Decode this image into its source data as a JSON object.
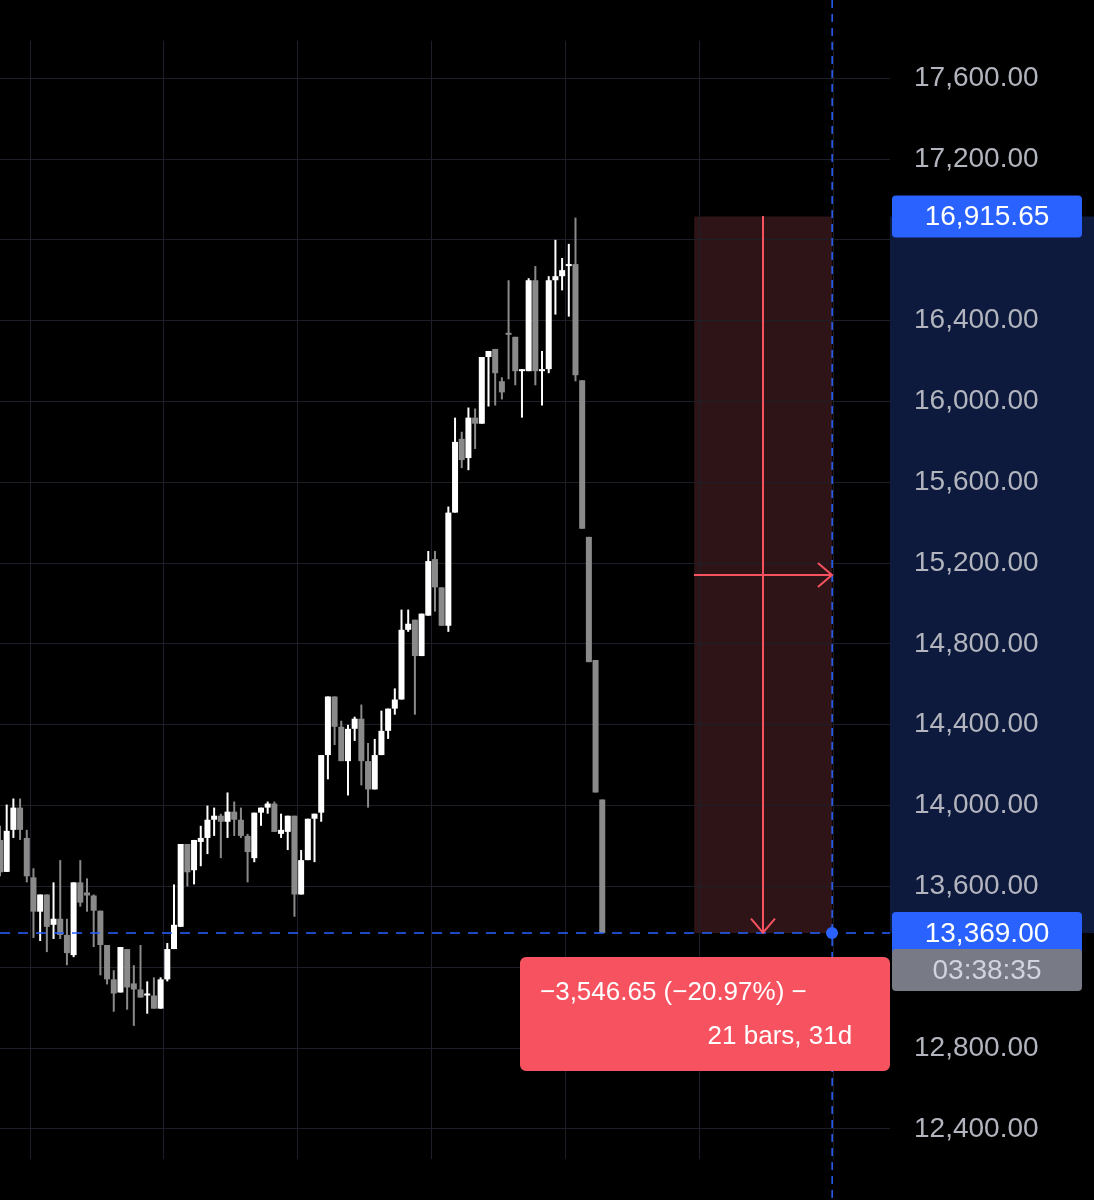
{
  "chart_data": {
    "type": "candlestick",
    "categories": [
      null,
      null,
      null,
      null,
      null,
      null,
      null,
      null,
      null,
      null,
      null,
      null,
      null,
      null,
      null,
      null,
      null,
      null,
      null,
      null,
      null,
      null,
      null,
      null,
      null,
      null,
      null,
      null,
      null,
      null,
      null,
      null,
      null,
      null,
      null,
      null,
      null,
      null,
      null,
      null,
      null,
      null,
      null,
      null,
      null,
      null,
      null,
      null,
      null,
      null,
      null,
      null,
      null,
      null,
      null,
      null,
      null,
      null,
      null,
      null,
      null,
      null,
      null,
      null,
      null,
      null,
      null,
      null,
      null,
      null,
      null,
      null,
      null,
      null,
      null,
      null,
      null,
      null,
      null,
      null,
      null,
      null,
      null,
      null,
      null,
      null,
      null,
      null,
      null,
      null,
      null,
      null,
      null,
      null,
      null,
      null,
      null,
      null,
      null,
      null,
      null,
      null,
      null,
      null,
      null,
      null,
      null,
      null,
      null,
      null,
      null,
      null,
      null,
      null,
      null,
      null,
      null,
      null,
      null,
      null,
      null,
      null,
      null,
      null,
      null,
      null,
      null,
      null,
      null,
      null,
      null,
      null,
      null,
      null
    ],
    "ohlc": [
      [
        13830,
        13900,
        13650,
        13670
      ],
      [
        13672,
        14005,
        13672,
        13875
      ],
      [
        13880,
        14035,
        13840,
        13990
      ],
      [
        13990,
        14035,
        13830,
        13880
      ],
      [
        13840,
        13880,
        13620,
        13650
      ],
      [
        13645,
        13690,
        13345,
        13475
      ],
      [
        13475,
        13560,
        13330,
        13560
      ],
      [
        13560,
        13560,
        13275,
        13400
      ],
      [
        13410,
        13620,
        13340,
        13440
      ],
      [
        13440,
        13730,
        13340,
        13360
      ],
      [
        13360,
        13440,
        13210,
        13270
      ],
      [
        13260,
        13620,
        13250,
        13620
      ],
      [
        13620,
        13730,
        13500,
        13520
      ],
      [
        13570,
        13640,
        13475,
        13555
      ],
      [
        13555,
        13560,
        13300,
        13480
      ],
      [
        13480,
        13480,
        13160,
        13310
      ],
      [
        13310,
        13310,
        13115,
        13140
      ],
      [
        13140,
        13185,
        12980,
        13070
      ],
      [
        13075,
        13300,
        13075,
        13300
      ],
      [
        13290,
        13290,
        12990,
        13100
      ],
      [
        13120,
        13210,
        12910,
        13090
      ],
      [
        13090,
        13310,
        13050,
        13050
      ],
      [
        13060,
        13130,
        12970,
        13070
      ],
      [
        13060,
        13150,
        12995,
        12995
      ],
      [
        12995,
        13150,
        12995,
        13140
      ],
      [
        13140,
        13320,
        13130,
        13290
      ],
      [
        13290,
        13610,
        13290,
        13410
      ],
      [
        13400,
        13810,
        13400,
        13810
      ],
      [
        13810,
        13810,
        13600,
        13670
      ],
      [
        13680,
        13830,
        13610,
        13830
      ],
      [
        13820,
        13900,
        13700,
        13840
      ],
      [
        13840,
        14000,
        13760,
        13930
      ],
      [
        13930,
        13990,
        13850,
        13950
      ],
      [
        13950,
        13960,
        13740,
        13920
      ],
      [
        13920,
        14065,
        13840,
        13970
      ],
      [
        13970,
        14020,
        13850,
        13930
      ],
      [
        13930,
        13990,
        13840,
        13850
      ],
      [
        13850,
        13860,
        13620,
        13770
      ],
      [
        13740,
        13965,
        13720,
        13965
      ],
      [
        13965,
        13990,
        13900,
        13990
      ],
      [
        13990,
        14020,
        13960,
        14010
      ],
      [
        14010,
        14020,
        13870,
        13870
      ],
      [
        13860,
        13960,
        13840,
        13880
      ],
      [
        13870,
        13950,
        13780,
        13950
      ],
      [
        13950,
        13950,
        13450,
        13560
      ],
      [
        13560,
        13780,
        13560,
        13730
      ],
      [
        13730,
        13935,
        13730,
        13935
      ],
      [
        13935,
        13960,
        13720,
        13960
      ],
      [
        13965,
        14250,
        13920,
        14250
      ],
      [
        14250,
        14540,
        14130,
        14540
      ],
      [
        14540,
        14540,
        14300,
        14390
      ],
      [
        14390,
        14420,
        14220,
        14220
      ],
      [
        14220,
        14400,
        14050,
        14380
      ],
      [
        14380,
        14440,
        14320,
        14430
      ],
      [
        14430,
        14500,
        14100,
        14220
      ],
      [
        14220,
        14310,
        13990,
        14080
      ],
      [
        14080,
        14330,
        14080,
        14250
      ],
      [
        14250,
        14470,
        14250,
        14370
      ],
      [
        14370,
        14480,
        14330,
        14480
      ],
      [
        14480,
        14580,
        14450,
        14525
      ],
      [
        14525,
        14970,
        14525,
        14870
      ],
      [
        14870,
        14970,
        14860,
        14900
      ],
      [
        14920,
        14920,
        14450,
        14740
      ],
      [
        14740,
        14950,
        14740,
        14950
      ],
      [
        14940,
        15260,
        14940,
        15210
      ],
      [
        15220,
        15260,
        14960,
        15080
      ],
      [
        15080,
        15080,
        14890,
        14890
      ],
      [
        14890,
        15480,
        14860,
        15450
      ],
      [
        15450,
        15920,
        15450,
        15800
      ],
      [
        15815,
        15850,
        15670,
        15710
      ],
      [
        15720,
        15970,
        15660,
        15920
      ],
      [
        15920,
        15965,
        15765,
        15890
      ],
      [
        15890,
        16220,
        15890,
        16220
      ],
      [
        16220,
        16250,
        15975,
        16250
      ],
      [
        16260,
        16260,
        15980,
        16140
      ],
      [
        16100,
        16120,
        16010,
        16045
      ],
      [
        16340,
        16600,
        16110,
        16330
      ],
      [
        16320,
        16320,
        16080,
        16150
      ],
      [
        16150,
        16160,
        15920,
        16160
      ],
      [
        16150,
        16610,
        16150,
        16600
      ],
      [
        16600,
        16670,
        16080,
        16150
      ],
      [
        16150,
        16250,
        15980,
        16160
      ],
      [
        16160,
        16620,
        16140,
        16600
      ],
      [
        16600,
        16800,
        16430,
        16620
      ],
      [
        16620,
        16710,
        16550,
        16650
      ],
      [
        16670,
        16780,
        16420,
        16680
      ],
      [
        16680,
        16910,
        16100,
        16130
      ],
      [
        16105,
        16105,
        15370,
        15370
      ],
      [
        15330,
        15330,
        14710,
        14710
      ],
      [
        14720,
        14720,
        14065,
        14065
      ],
      [
        14030,
        14030,
        13369,
        13369
      ],
      null,
      null,
      null,
      null,
      null,
      null,
      null,
      null,
      null,
      null,
      null,
      null,
      null,
      null,
      null,
      null,
      null,
      null,
      null,
      null,
      null,
      null,
      null,
      null,
      null,
      null,
      null,
      null,
      null,
      null,
      null,
      null,
      null,
      null,
      null,
      null,
      null,
      null,
      null,
      null,
      null,
      null,
      null
    ],
    "ylim": [
      12250,
      17785
    ],
    "yticks": [
      {
        "value": 12400,
        "label": "12,400.00"
      },
      {
        "value": 12800,
        "label": "12,800.00"
      },
      {
        "value": 13200,
        "label": null
      },
      {
        "value": 13600,
        "label": "13,600.00"
      },
      {
        "value": 14000,
        "label": "14,000.00"
      },
      {
        "value": 14400,
        "label": "14,400.00"
      },
      {
        "value": 14800,
        "label": "14,800.00"
      },
      {
        "value": 15200,
        "label": "15,200.00"
      },
      {
        "value": 15600,
        "label": "15,600.00"
      },
      {
        "value": 16000,
        "label": "16,000.00"
      },
      {
        "value": 16400,
        "label": "16,400.00"
      },
      {
        "value": 16800,
        "label": null
      },
      {
        "value": 17200,
        "label": "17,200.00"
      },
      {
        "value": 17600,
        "label": "17,600.00"
      }
    ],
    "grid": true,
    "tick_labels": "y",
    "ref_lines": [
      {
        "axis": "y",
        "value": 13369,
        "label": "13,369.00",
        "color": "#2962ff",
        "line_style": "dashed"
      }
    ],
    "bands": [
      {
        "axis": "y",
        "from": 13369,
        "to": 16915.65,
        "color": "#2e1317"
      }
    ],
    "annotations": [
      "16,915.65",
      "03:38:35",
      "−3,546.65 (−20.97%) −",
      "21 bars, 31d"
    ]
  }
}
